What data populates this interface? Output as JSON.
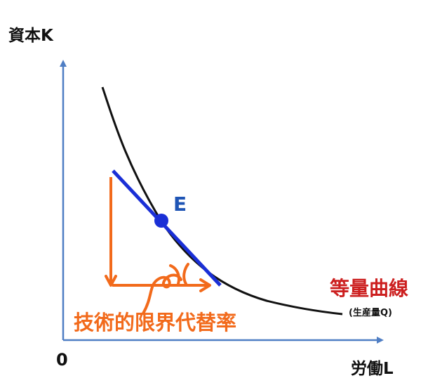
{
  "axes": {
    "y_label": "資本K",
    "x_label": "労働L",
    "origin_label": "0"
  },
  "point": {
    "label": "E"
  },
  "curve": {
    "label": "等量曲線",
    "sublabel": "(生産量Q)"
  },
  "annotation": {
    "label": "技術的限界代替率"
  },
  "colors": {
    "axis": "#4f7ec4",
    "curve": "#111111",
    "tangent": "#1a2fd6",
    "point": "#1a2fd6",
    "annotation": "#f26a1b",
    "curve_label": "#cc1f1f",
    "point_label": "#1f55b5"
  }
}
